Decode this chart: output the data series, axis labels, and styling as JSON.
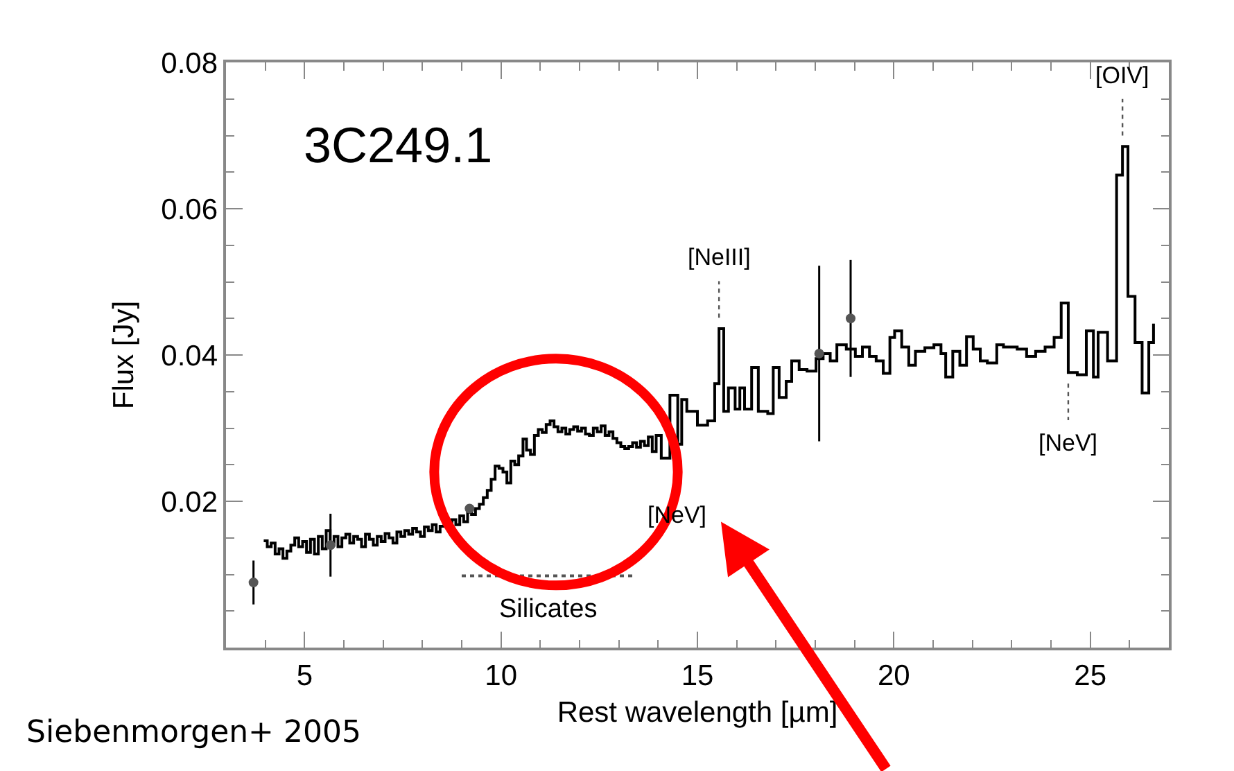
{
  "chart_data": {
    "type": "step",
    "title": "3C249.1",
    "xlabel": "Rest wavelength [µm]",
    "ylabel": "Flux [Jy]",
    "xlim": [
      3,
      27
    ],
    "xticks": [
      5,
      10,
      15,
      20,
      25
    ],
    "ylim": [
      0,
      0.08
    ],
    "yticks": [
      0.02,
      0.04,
      0.06,
      0.08
    ],
    "series": [
      {
        "type": "step",
        "color": "#000000",
        "x": [
          3.96,
          4.05,
          4.15,
          4.25,
          4.35,
          4.45,
          4.55,
          4.65,
          4.75,
          4.85,
          4.95,
          5.05,
          5.15,
          5.25,
          5.35,
          5.45,
          5.55,
          5.65,
          5.75,
          5.85,
          5.95,
          6.05,
          6.15,
          6.25,
          6.35,
          6.45,
          6.55,
          6.65,
          6.75,
          6.85,
          6.95,
          7.05,
          7.15,
          7.25,
          7.35,
          7.45,
          7.55,
          7.65,
          7.75,
          7.85,
          7.95,
          8.05,
          8.15,
          8.25,
          8.35,
          8.45,
          8.55,
          8.65,
          8.75,
          8.85,
          8.95,
          9.05,
          9.15,
          9.25,
          9.35,
          9.45,
          9.55,
          9.65,
          9.75,
          9.85,
          9.95,
          10.05,
          10.15,
          10.25,
          10.35,
          10.45,
          10.56,
          10.65,
          10.75,
          10.85,
          10.95,
          11.05,
          11.15,
          11.25,
          11.35,
          11.45,
          11.55,
          11.65,
          11.75,
          11.85,
          11.95,
          12.05,
          12.15,
          12.25,
          12.35,
          12.45,
          12.55,
          12.65,
          12.75,
          12.85,
          12.95,
          13.05,
          13.15,
          13.25,
          13.35,
          13.45,
          13.55,
          13.65,
          13.75,
          13.85,
          13.95,
          14.08,
          14.3,
          14.5,
          14.6,
          14.73,
          15.0,
          15.26,
          15.44,
          15.55,
          15.67,
          15.79,
          15.96,
          16.08,
          16.2,
          16.38,
          16.55,
          16.79,
          16.93,
          17.08,
          17.26,
          17.4,
          17.59,
          17.79,
          18.02,
          18.2,
          18.38,
          18.55,
          18.79,
          19.02,
          19.2,
          19.38,
          19.55,
          19.73,
          19.9,
          20.02,
          20.2,
          20.38,
          20.55,
          20.79,
          21.02,
          21.2,
          21.32,
          21.5,
          21.68,
          21.85,
          22.02,
          22.2,
          22.38,
          22.62,
          22.79,
          23.14,
          23.38,
          23.61,
          23.85,
          24.08,
          24.26,
          24.44,
          24.67,
          24.9,
          25.08,
          25.2,
          25.44,
          25.67,
          25.82,
          25.96,
          26.14,
          26.32,
          26.49,
          26.61
        ],
        "values": [
          0.0146,
          0.0138,
          0.0143,
          0.0128,
          0.0135,
          0.0122,
          0.0132,
          0.014,
          0.015,
          0.0138,
          0.0145,
          0.013,
          0.0148,
          0.0128,
          0.0152,
          0.0135,
          0.016,
          0.014,
          0.0152,
          0.0138,
          0.015,
          0.0155,
          0.0143,
          0.0152,
          0.0148,
          0.0138,
          0.0155,
          0.0148,
          0.014,
          0.0152,
          0.0145,
          0.0156,
          0.015,
          0.0143,
          0.0158,
          0.0152,
          0.016,
          0.0155,
          0.0163,
          0.0158,
          0.0152,
          0.0165,
          0.016,
          0.0168,
          0.0158,
          0.0166,
          0.017,
          0.0162,
          0.0175,
          0.0168,
          0.018,
          0.0172,
          0.0185,
          0.0182,
          0.019,
          0.0196,
          0.0205,
          0.0215,
          0.023,
          0.0248,
          0.0245,
          0.024,
          0.0225,
          0.0255,
          0.025,
          0.0262,
          0.0285,
          0.027,
          0.0264,
          0.029,
          0.0298,
          0.0294,
          0.0305,
          0.031,
          0.0302,
          0.0295,
          0.03,
          0.0292,
          0.0298,
          0.0302,
          0.0296,
          0.03,
          0.0292,
          0.029,
          0.03,
          0.0295,
          0.0303,
          0.029,
          0.0295,
          0.0286,
          0.028,
          0.0275,
          0.0272,
          0.0275,
          0.028,
          0.0274,
          0.0282,
          0.0276,
          0.0288,
          0.0268,
          0.029,
          0.0259,
          0.0345,
          0.0278,
          0.0339,
          0.0323,
          0.0304,
          0.031,
          0.0361,
          0.0436,
          0.0323,
          0.0355,
          0.0326,
          0.0355,
          0.0326,
          0.0383,
          0.0323,
          0.032,
          0.0383,
          0.0342,
          0.0364,
          0.0392,
          0.038,
          0.0378,
          0.0395,
          0.0402,
          0.0392,
          0.0414,
          0.0408,
          0.0398,
          0.0411,
          0.0398,
          0.0392,
          0.0375,
          0.0424,
          0.0433,
          0.0411,
          0.0386,
          0.0405,
          0.041,
          0.0414,
          0.0402,
          0.037,
          0.0405,
          0.0386,
          0.0425,
          0.0408,
          0.0392,
          0.0389,
          0.0414,
          0.0411,
          0.0408,
          0.0398,
          0.0405,
          0.0411,
          0.0424,
          0.0471,
          0.0376,
          0.0373,
          0.0433,
          0.037,
          0.0431,
          0.0392,
          0.0646,
          0.0685,
          0.048,
          0.0417,
          0.0348,
          0.0417,
          0.0443
        ]
      },
      {
        "type": "scatter",
        "color": "#555555",
        "marker": "circle",
        "x": [
          3.7,
          5.66,
          9.2,
          18.1,
          18.9
        ],
        "values": [
          0.0089,
          0.014,
          0.019,
          0.0402,
          0.045
        ],
        "errors": [
          0.003,
          0.0043,
          0.0005,
          0.012,
          0.008
        ]
      },
      {
        "type": "line",
        "color": "#555555",
        "line_style": "dotted",
        "x": [
          9.0,
          13.4
        ],
        "values": [
          0.0098,
          0.0098
        ]
      }
    ],
    "annotations": [
      {
        "text": "[NeIII]",
        "x": 15.55,
        "y": 0.0436
      },
      {
        "text": "[OIV]",
        "x": 25.82,
        "y": 0.0685
      },
      {
        "text": "[NeV]",
        "x": 14.5,
        "y": 0.0278
      },
      {
        "text": "[NeV]",
        "x": 24.44,
        "y": 0.0376
      },
      "Silicates",
      "Siebenmorgen+ 2005"
    ]
  }
}
